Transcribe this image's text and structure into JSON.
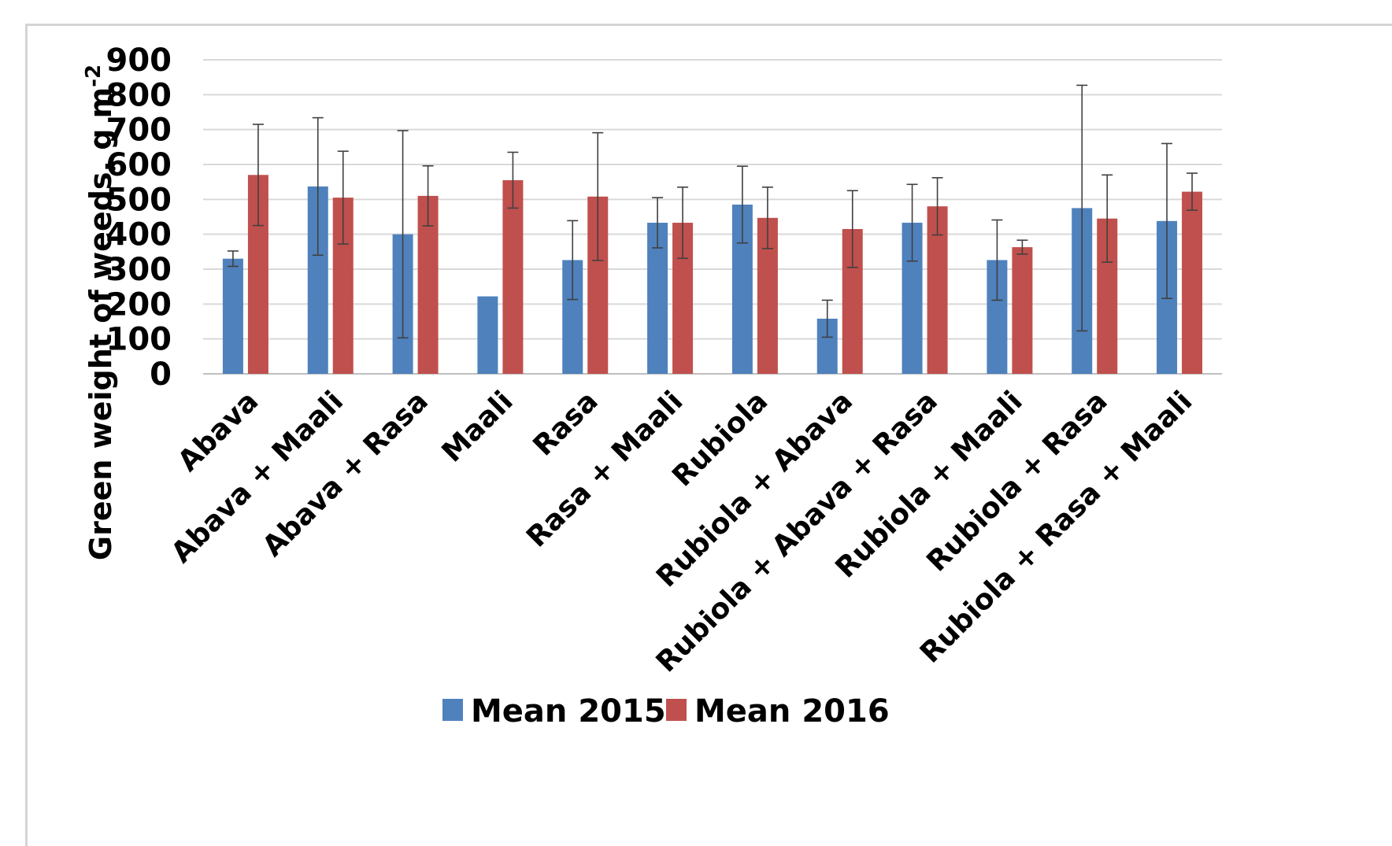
{
  "chart_data": {
    "type": "bar",
    "title": "",
    "xlabel": "",
    "ylabel": "Green weight of weeds, g m",
    "ylabel_superscript": "-2",
    "ylim": [
      0,
      900
    ],
    "yticks": [
      0,
      100,
      200,
      300,
      400,
      500,
      600,
      700,
      800,
      900
    ],
    "grid": true,
    "legend_position": "bottom",
    "categories": [
      "Abava",
      "Abava + Maali",
      "Abava + Rasa",
      "Maali",
      "Rasa",
      "Rasa + Maali",
      "Rubiola",
      "Rubiola + Abava",
      "Rubiola + Abava + Rasa",
      "Rubiola + Maali",
      "Rubiola + Rasa",
      "Rubiola + Rasa + Maali"
    ],
    "series": [
      {
        "name": "Mean 2015",
        "color": "#4f81bd",
        "values": [
          330,
          537,
          400,
          222,
          326,
          433,
          485,
          158,
          433,
          326,
          475,
          438
        ],
        "error": [
          22,
          197,
          297,
          0,
          113,
          72,
          110,
          53,
          110,
          115,
          352,
          222
        ]
      },
      {
        "name": "Mean 2016",
        "color": "#c0504d",
        "values": [
          570,
          505,
          510,
          555,
          508,
          433,
          447,
          415,
          480,
          363,
          445,
          522
        ],
        "error": [
          145,
          133,
          86,
          80,
          183,
          102,
          88,
          110,
          82,
          20,
          125,
          53
        ]
      }
    ]
  }
}
